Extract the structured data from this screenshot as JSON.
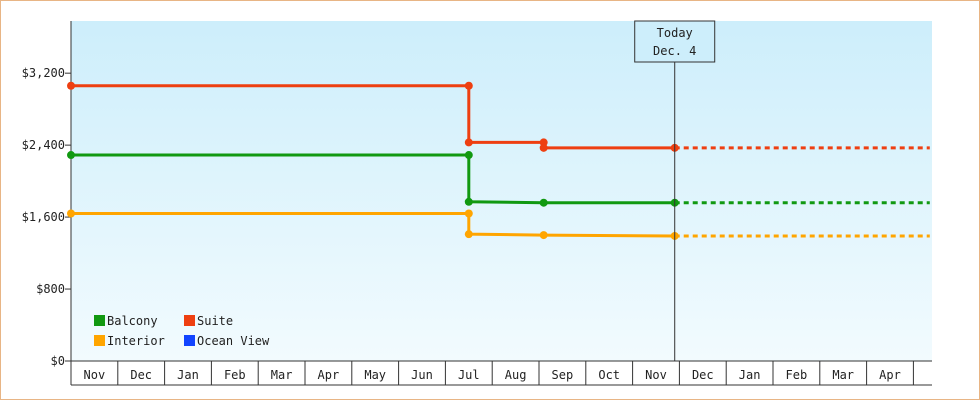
{
  "chart_data": {
    "type": "line",
    "step": true,
    "y_ticks": [
      "$0",
      "$800",
      "$1,600",
      "$2,400",
      "$3,200"
    ],
    "y_tick_values": [
      0,
      800,
      1600,
      2400,
      3200
    ],
    "ylim": [
      0,
      3780
    ],
    "months": [
      "Nov",
      "Dec",
      "Jan",
      "Feb",
      "Mar",
      "Apr",
      "May",
      "Jun",
      "Jul",
      "Aug",
      "Sep",
      "Oct",
      "Nov",
      "Dec",
      "Jan",
      "Feb",
      "Mar",
      "Apr"
    ],
    "today": {
      "line1": "Today",
      "line2": "Dec. 4",
      "month_position": 12.9
    },
    "legend_position": "bottom-left",
    "series": [
      {
        "name": "Balcony",
        "color": "#119911",
        "points": [
          [
            0,
            2290
          ],
          [
            8.5,
            2290
          ],
          [
            8.5,
            1770
          ],
          [
            10.1,
            1760
          ],
          [
            12.9,
            1760
          ]
        ],
        "projection": [
          [
            12.9,
            1760
          ],
          [
            18.35,
            1760
          ]
        ]
      },
      {
        "name": "Suite",
        "color": "#ee3f11",
        "points": [
          [
            0,
            3060
          ],
          [
            8.5,
            3060
          ],
          [
            8.5,
            2430
          ],
          [
            10.1,
            2430
          ],
          [
            10.1,
            2370
          ],
          [
            12.9,
            2370
          ]
        ],
        "projection": [
          [
            12.9,
            2370
          ],
          [
            18.35,
            2370
          ]
        ]
      },
      {
        "name": "Interior",
        "color": "#ffa500",
        "points": [
          [
            0,
            1640
          ],
          [
            8.5,
            1640
          ],
          [
            8.5,
            1410
          ],
          [
            10.1,
            1400
          ],
          [
            12.9,
            1390
          ]
        ],
        "projection": [
          [
            12.9,
            1390
          ],
          [
            18.35,
            1390
          ]
        ]
      },
      {
        "name": "Ocean View",
        "color": "#1144ff",
        "points": [],
        "projection": []
      }
    ]
  }
}
